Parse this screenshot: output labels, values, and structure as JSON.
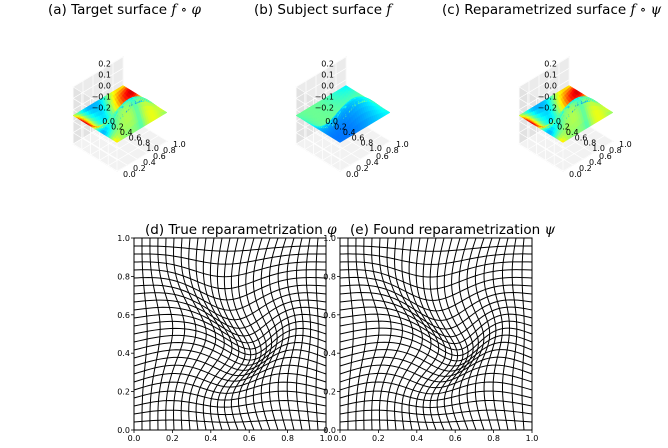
{
  "figure": {
    "panels_3d": [
      {
        "id": "a",
        "label": "(a) Target surface ",
        "math": "f ∘ φ",
        "colored": true
      },
      {
        "id": "b",
        "label": "(b) Subject surface ",
        "math": "f",
        "colored": false
      },
      {
        "id": "c",
        "label": "(c) Reparametrized surface ",
        "math": "f ∘ ψ",
        "colored": true
      }
    ],
    "panels_2d": [
      {
        "id": "d",
        "label": "(d) True reparametrization ",
        "math": "φ"
      },
      {
        "id": "e",
        "label": "(e) Found reparametrization ",
        "math": "ψ"
      }
    ],
    "z_ticks": [
      "0.2",
      "0.1",
      "0.0",
      "−0.1",
      "−0.2"
    ],
    "xy_ticks_3d": [
      "1.0",
      "0.8",
      "0.6",
      "0.4",
      "0.2",
      "0.0"
    ],
    "grid_ticks": [
      "0.0",
      "0.2",
      "0.4",
      "0.6",
      "0.8",
      "1.0"
    ]
  },
  "chart_data": [
    {
      "type": "surface",
      "title": "(a) Target surface f ∘ φ",
      "zlim": [
        -0.25,
        0.25
      ],
      "xlim": [
        0,
        1
      ],
      "ylim": [
        0,
        1
      ]
    },
    {
      "type": "surface",
      "title": "(b) Subject surface f",
      "zlim": [
        -0.25,
        0.25
      ],
      "xlim": [
        0,
        1
      ],
      "ylim": [
        0,
        1
      ]
    },
    {
      "type": "surface",
      "title": "(c) Reparametrized surface f ∘ ψ",
      "zlim": [
        -0.25,
        0.25
      ],
      "xlim": [
        0,
        1
      ],
      "ylim": [
        0,
        1
      ]
    },
    {
      "type": "grid",
      "title": "(d) True reparametrization φ",
      "xlim": [
        0,
        1
      ],
      "ylim": [
        0,
        1
      ],
      "grid_lines": 24
    },
    {
      "type": "grid",
      "title": "(e) Found reparametrization ψ",
      "xlim": [
        0,
        1
      ],
      "ylim": [
        0,
        1
      ],
      "grid_lines": 24
    }
  ]
}
